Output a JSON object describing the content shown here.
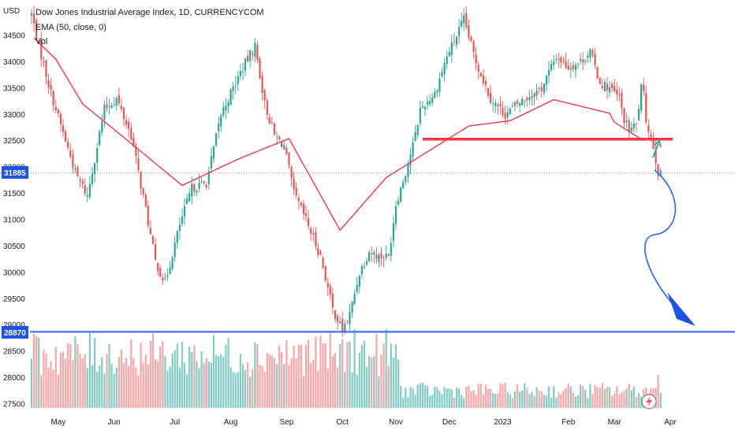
{
  "chart_data": {
    "type": "candlestick",
    "title": "Dow Jones Industrial Average Index, 1D, CURRENCYCOM",
    "indicators": [
      "EMA (50, close, 0)",
      "Vol"
    ],
    "currency_label": "USD",
    "y_ticks": [
      "34500",
      "34000",
      "33500",
      "33000",
      "32500",
      "32000",
      "31500",
      "31000",
      "30500",
      "30000",
      "29500",
      "29000",
      "28500",
      "28000",
      "27500"
    ],
    "y_tick_values": [
      34500,
      34000,
      33500,
      33000,
      32500,
      32000,
      31500,
      31000,
      30500,
      30000,
      29500,
      29000,
      28500,
      28000,
      27500
    ],
    "x_ticks": [
      "May",
      "Jun",
      "Jul",
      "Aug",
      "Sep",
      "Oct",
      "Nov",
      "Dec",
      "2023",
      "Feb",
      "Mar",
      "Apr"
    ],
    "ylim": [
      27300,
      35050
    ],
    "price_tags": {
      "current": "31885",
      "support": "28870"
    },
    "current_price": 31885,
    "support_level": 28870,
    "resistance_level": 32530,
    "colors": {
      "up": "#26a69a",
      "down": "#ef5350",
      "ema": "#f23645",
      "support_line": "#2962ff",
      "resistance_line": "#f23645",
      "vol_up": "#80cbc4",
      "vol_down": "#f5a6a5"
    },
    "ema_series": [
      [
        1,
        34450
      ],
      [
        10,
        34050
      ],
      [
        21,
        33200
      ],
      [
        37,
        32600
      ],
      [
        62,
        31650
      ],
      [
        85,
        32150
      ],
      [
        106,
        32540
      ],
      [
        127,
        30800
      ],
      [
        146,
        31800
      ],
      [
        180,
        32780
      ],
      [
        197,
        32880
      ],
      [
        215,
        33280
      ],
      [
        238,
        33020
      ],
      [
        240,
        32850
      ],
      [
        252,
        32500
      ]
    ],
    "annotations": {
      "up_arrow": "projected bounce to 32530",
      "down_arrow": "projected decline to 28870"
    }
  },
  "badge": {
    "icon": "lightning-icon"
  }
}
